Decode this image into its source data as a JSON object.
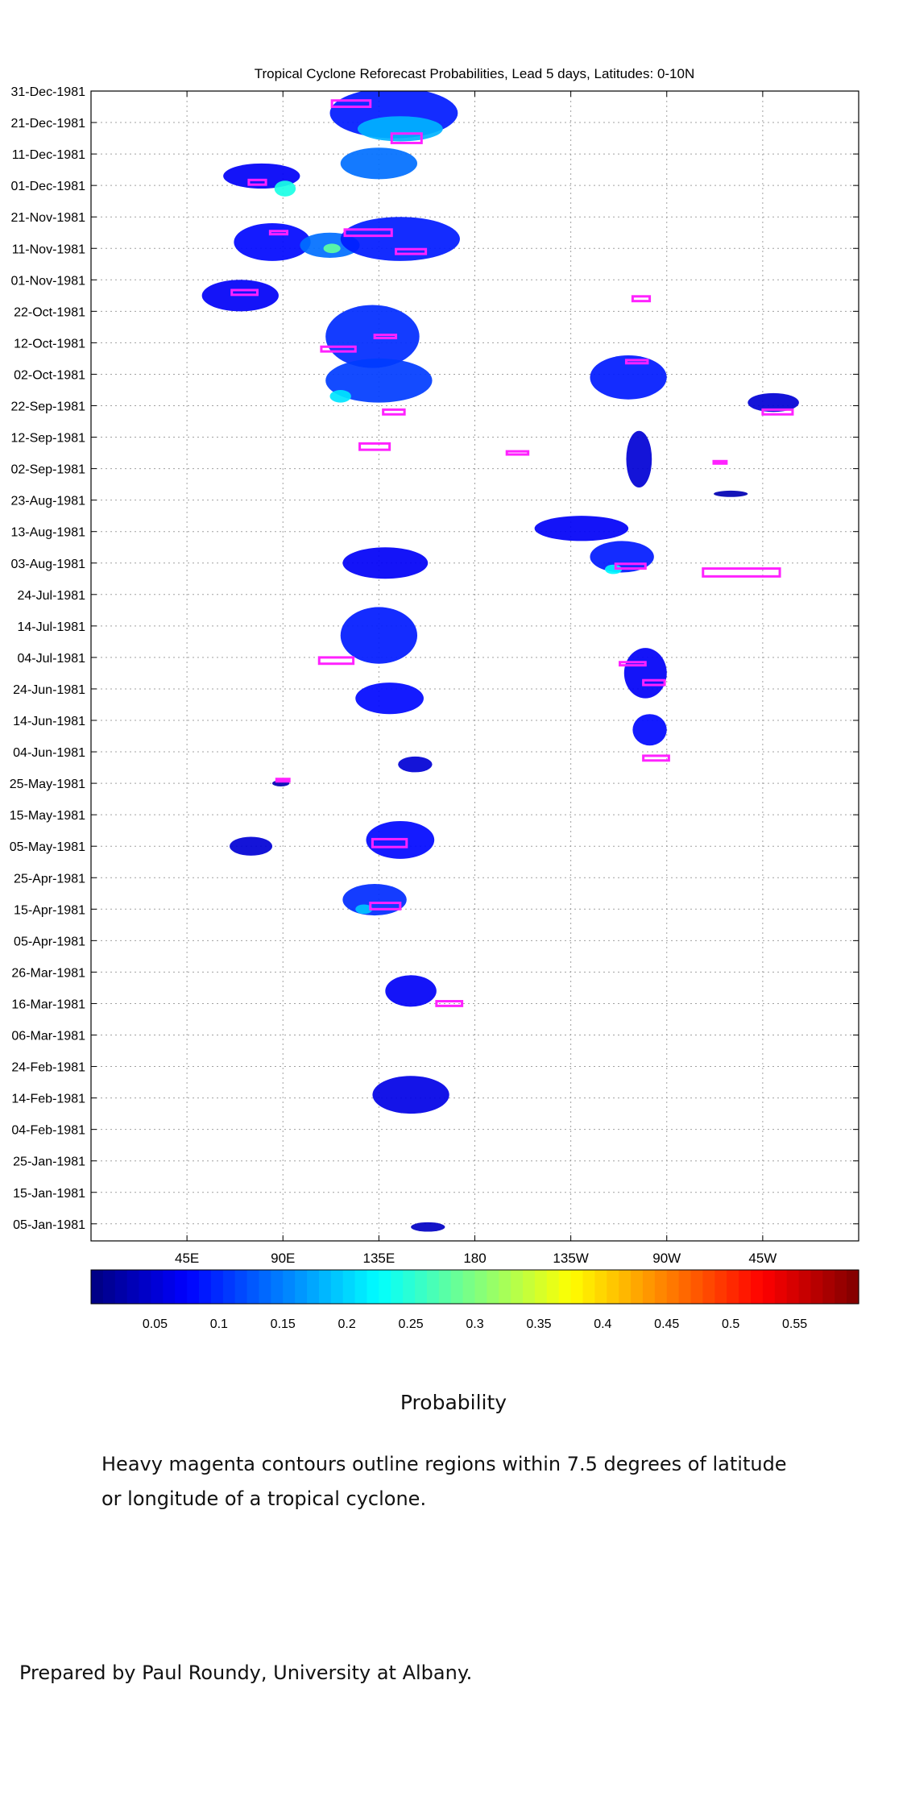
{
  "chart_data": {
    "type": "heatmap",
    "title": "Tropical Cyclone Reforecast Probabilities, Lead 5 days, Latitudes: 0-10N",
    "x_ticks": [
      "45E",
      "90E",
      "135E",
      "180",
      "135W",
      "90W",
      "45W"
    ],
    "x_tick_lon": [
      45,
      90,
      135,
      180,
      225,
      270,
      315
    ],
    "x_range": [
      0,
      360
    ],
    "y_ticks": [
      "31-Dec-1981",
      "21-Dec-1981",
      "11-Dec-1981",
      "01-Dec-1981",
      "21-Nov-1981",
      "11-Nov-1981",
      "01-Nov-1981",
      "22-Oct-1981",
      "12-Oct-1981",
      "02-Oct-1981",
      "22-Sep-1981",
      "12-Sep-1981",
      "02-Sep-1981",
      "23-Aug-1981",
      "13-Aug-1981",
      "03-Aug-1981",
      "24-Jul-1981",
      "14-Jul-1981",
      "04-Jul-1981",
      "24-Jun-1981",
      "14-Jun-1981",
      "04-Jun-1981",
      "25-May-1981",
      "15-May-1981",
      "05-May-1981",
      "25-Apr-1981",
      "15-Apr-1981",
      "05-Apr-1981",
      "26-Mar-1981",
      "16-Mar-1981",
      "06-Mar-1981",
      "24-Feb-1981",
      "14-Feb-1981",
      "04-Feb-1981",
      "25-Jan-1981",
      "15-Jan-1981",
      "05-Jan-1981"
    ],
    "grid": true,
    "colorbar": {
      "label": "Probability",
      "ticks": [
        "0.05",
        "0.1",
        "0.15",
        "0.2",
        "0.25",
        "0.3",
        "0.35",
        "0.4",
        "0.45",
        "0.5",
        "0.55"
      ],
      "range": [
        0,
        0.6
      ],
      "colormap": "jet"
    },
    "probability_regions": [
      {
        "lon": 142,
        "day": 358,
        "dlon": 30,
        "dday": 16,
        "p": 0.09
      },
      {
        "lon": 145,
        "day": 353,
        "dlon": 20,
        "dday": 8,
        "p": 0.18
      },
      {
        "lon": 135,
        "day": 342,
        "dlon": 18,
        "dday": 10,
        "p": 0.14
      },
      {
        "lon": 80,
        "day": 338,
        "dlon": 18,
        "dday": 8,
        "p": 0.07
      },
      {
        "lon": 91,
        "day": 334,
        "dlon": 5,
        "dday": 5,
        "p": 0.24
      },
      {
        "lon": 85,
        "day": 317,
        "dlon": 18,
        "dday": 12,
        "p": 0.08
      },
      {
        "lon": 112,
        "day": 316,
        "dlon": 14,
        "dday": 8,
        "p": 0.14
      },
      {
        "lon": 113,
        "day": 315,
        "dlon": 4,
        "dday": 3,
        "p": 0.28
      },
      {
        "lon": 145,
        "day": 318,
        "dlon": 28,
        "dday": 14,
        "p": 0.09
      },
      {
        "lon": 70,
        "day": 300,
        "dlon": 18,
        "dday": 10,
        "p": 0.07
      },
      {
        "lon": 132,
        "day": 287,
        "dlon": 22,
        "dday": 20,
        "p": 0.1
      },
      {
        "lon": 135,
        "day": 273,
        "dlon": 25,
        "dday": 14,
        "p": 0.11
      },
      {
        "lon": 117,
        "day": 268,
        "dlon": 5,
        "dday": 4,
        "p": 0.21
      },
      {
        "lon": 252,
        "day": 274,
        "dlon": 18,
        "dday": 14,
        "p": 0.09
      },
      {
        "lon": 257,
        "day": 248,
        "dlon": 6,
        "dday": 18,
        "p": 0.05
      },
      {
        "lon": 320,
        "day": 266,
        "dlon": 12,
        "dday": 6,
        "p": 0.05
      },
      {
        "lon": 300,
        "day": 237,
        "dlon": 8,
        "dday": 2,
        "p": 0.03
      },
      {
        "lon": 138,
        "day": 215,
        "dlon": 20,
        "dday": 10,
        "p": 0.07
      },
      {
        "lon": 230,
        "day": 226,
        "dlon": 22,
        "dday": 8,
        "p": 0.07
      },
      {
        "lon": 249,
        "day": 217,
        "dlon": 15,
        "dday": 10,
        "p": 0.09
      },
      {
        "lon": 245,
        "day": 213,
        "dlon": 4,
        "dday": 3,
        "p": 0.22
      },
      {
        "lon": 135,
        "day": 192,
        "dlon": 18,
        "dday": 18,
        "p": 0.09
      },
      {
        "lon": 140,
        "day": 172,
        "dlon": 16,
        "dday": 10,
        "p": 0.08
      },
      {
        "lon": 260,
        "day": 180,
        "dlon": 10,
        "dday": 16,
        "p": 0.07
      },
      {
        "lon": 262,
        "day": 162,
        "dlon": 8,
        "dday": 10,
        "p": 0.08
      },
      {
        "lon": 152,
        "day": 151,
        "dlon": 8,
        "dday": 5,
        "p": 0.05
      },
      {
        "lon": 89,
        "day": 145,
        "dlon": 4,
        "dday": 2,
        "p": 0.03
      },
      {
        "lon": 145,
        "day": 127,
        "dlon": 16,
        "dday": 12,
        "p": 0.08
      },
      {
        "lon": 133,
        "day": 108,
        "dlon": 15,
        "dday": 10,
        "p": 0.1
      },
      {
        "lon": 128,
        "day": 105,
        "dlon": 4,
        "dday": 3,
        "p": 0.19
      },
      {
        "lon": 75,
        "day": 125,
        "dlon": 10,
        "dday": 6,
        "p": 0.05
      },
      {
        "lon": 150,
        "day": 79,
        "dlon": 12,
        "dday": 10,
        "p": 0.07
      },
      {
        "lon": 150,
        "day": 46,
        "dlon": 18,
        "dday": 12,
        "p": 0.06
      },
      {
        "lon": 158,
        "day": 4,
        "dlon": 8,
        "dday": 3,
        "p": 0.04
      }
    ],
    "cyclone_contours": [
      {
        "lon": 122,
        "day": 361,
        "dlon": 18,
        "dday": 4
      },
      {
        "lon": 148,
        "day": 350,
        "dlon": 14,
        "dday": 6
      },
      {
        "lon": 78,
        "day": 336,
        "dlon": 8,
        "dday": 3
      },
      {
        "lon": 130,
        "day": 320,
        "dlon": 22,
        "dday": 4
      },
      {
        "lon": 88,
        "day": 320,
        "dlon": 8,
        "dday": 2
      },
      {
        "lon": 150,
        "day": 314,
        "dlon": 14,
        "dday": 3
      },
      {
        "lon": 72,
        "day": 301,
        "dlon": 12,
        "dday": 3
      },
      {
        "lon": 258,
        "day": 299,
        "dlon": 8,
        "dday": 3
      },
      {
        "lon": 116,
        "day": 283,
        "dlon": 16,
        "dday": 3
      },
      {
        "lon": 138,
        "day": 287,
        "dlon": 10,
        "dday": 2
      },
      {
        "lon": 256,
        "day": 279,
        "dlon": 10,
        "dday": 2
      },
      {
        "lon": 142,
        "day": 263,
        "dlon": 10,
        "dday": 3
      },
      {
        "lon": 322,
        "day": 263,
        "dlon": 14,
        "dday": 3
      },
      {
        "lon": 133,
        "day": 252,
        "dlon": 14,
        "dday": 4
      },
      {
        "lon": 200,
        "day": 250,
        "dlon": 10,
        "dday": 2
      },
      {
        "lon": 295,
        "day": 247,
        "dlon": 6,
        "dday": 1
      },
      {
        "lon": 305,
        "day": 212,
        "dlon": 36,
        "dday": 5
      },
      {
        "lon": 253,
        "day": 214,
        "dlon": 14,
        "dday": 3
      },
      {
        "lon": 254,
        "day": 183,
        "dlon": 12,
        "dday": 2
      },
      {
        "lon": 264,
        "day": 177,
        "dlon": 10,
        "dday": 3
      },
      {
        "lon": 115,
        "day": 184,
        "dlon": 16,
        "dday": 4
      },
      {
        "lon": 265,
        "day": 153,
        "dlon": 12,
        "dday": 3
      },
      {
        "lon": 140,
        "day": 126,
        "dlon": 16,
        "dday": 5
      },
      {
        "lon": 138,
        "day": 106,
        "dlon": 14,
        "dday": 4
      },
      {
        "lon": 168,
        "day": 75,
        "dlon": 12,
        "dday": 3
      },
      {
        "lon": 90,
        "day": 146,
        "dlon": 6,
        "dday": 1
      }
    ]
  },
  "captions": {
    "note_line1": "Heavy magenta contours outline regions within 7.5 degrees of latitude",
    "note_line2": "or longitude of a tropical cyclone.",
    "credit": "Prepared by Paul Roundy, University at Albany."
  },
  "colors": {
    "contour": "#ff22ff",
    "grid": "#a0a0a0"
  }
}
